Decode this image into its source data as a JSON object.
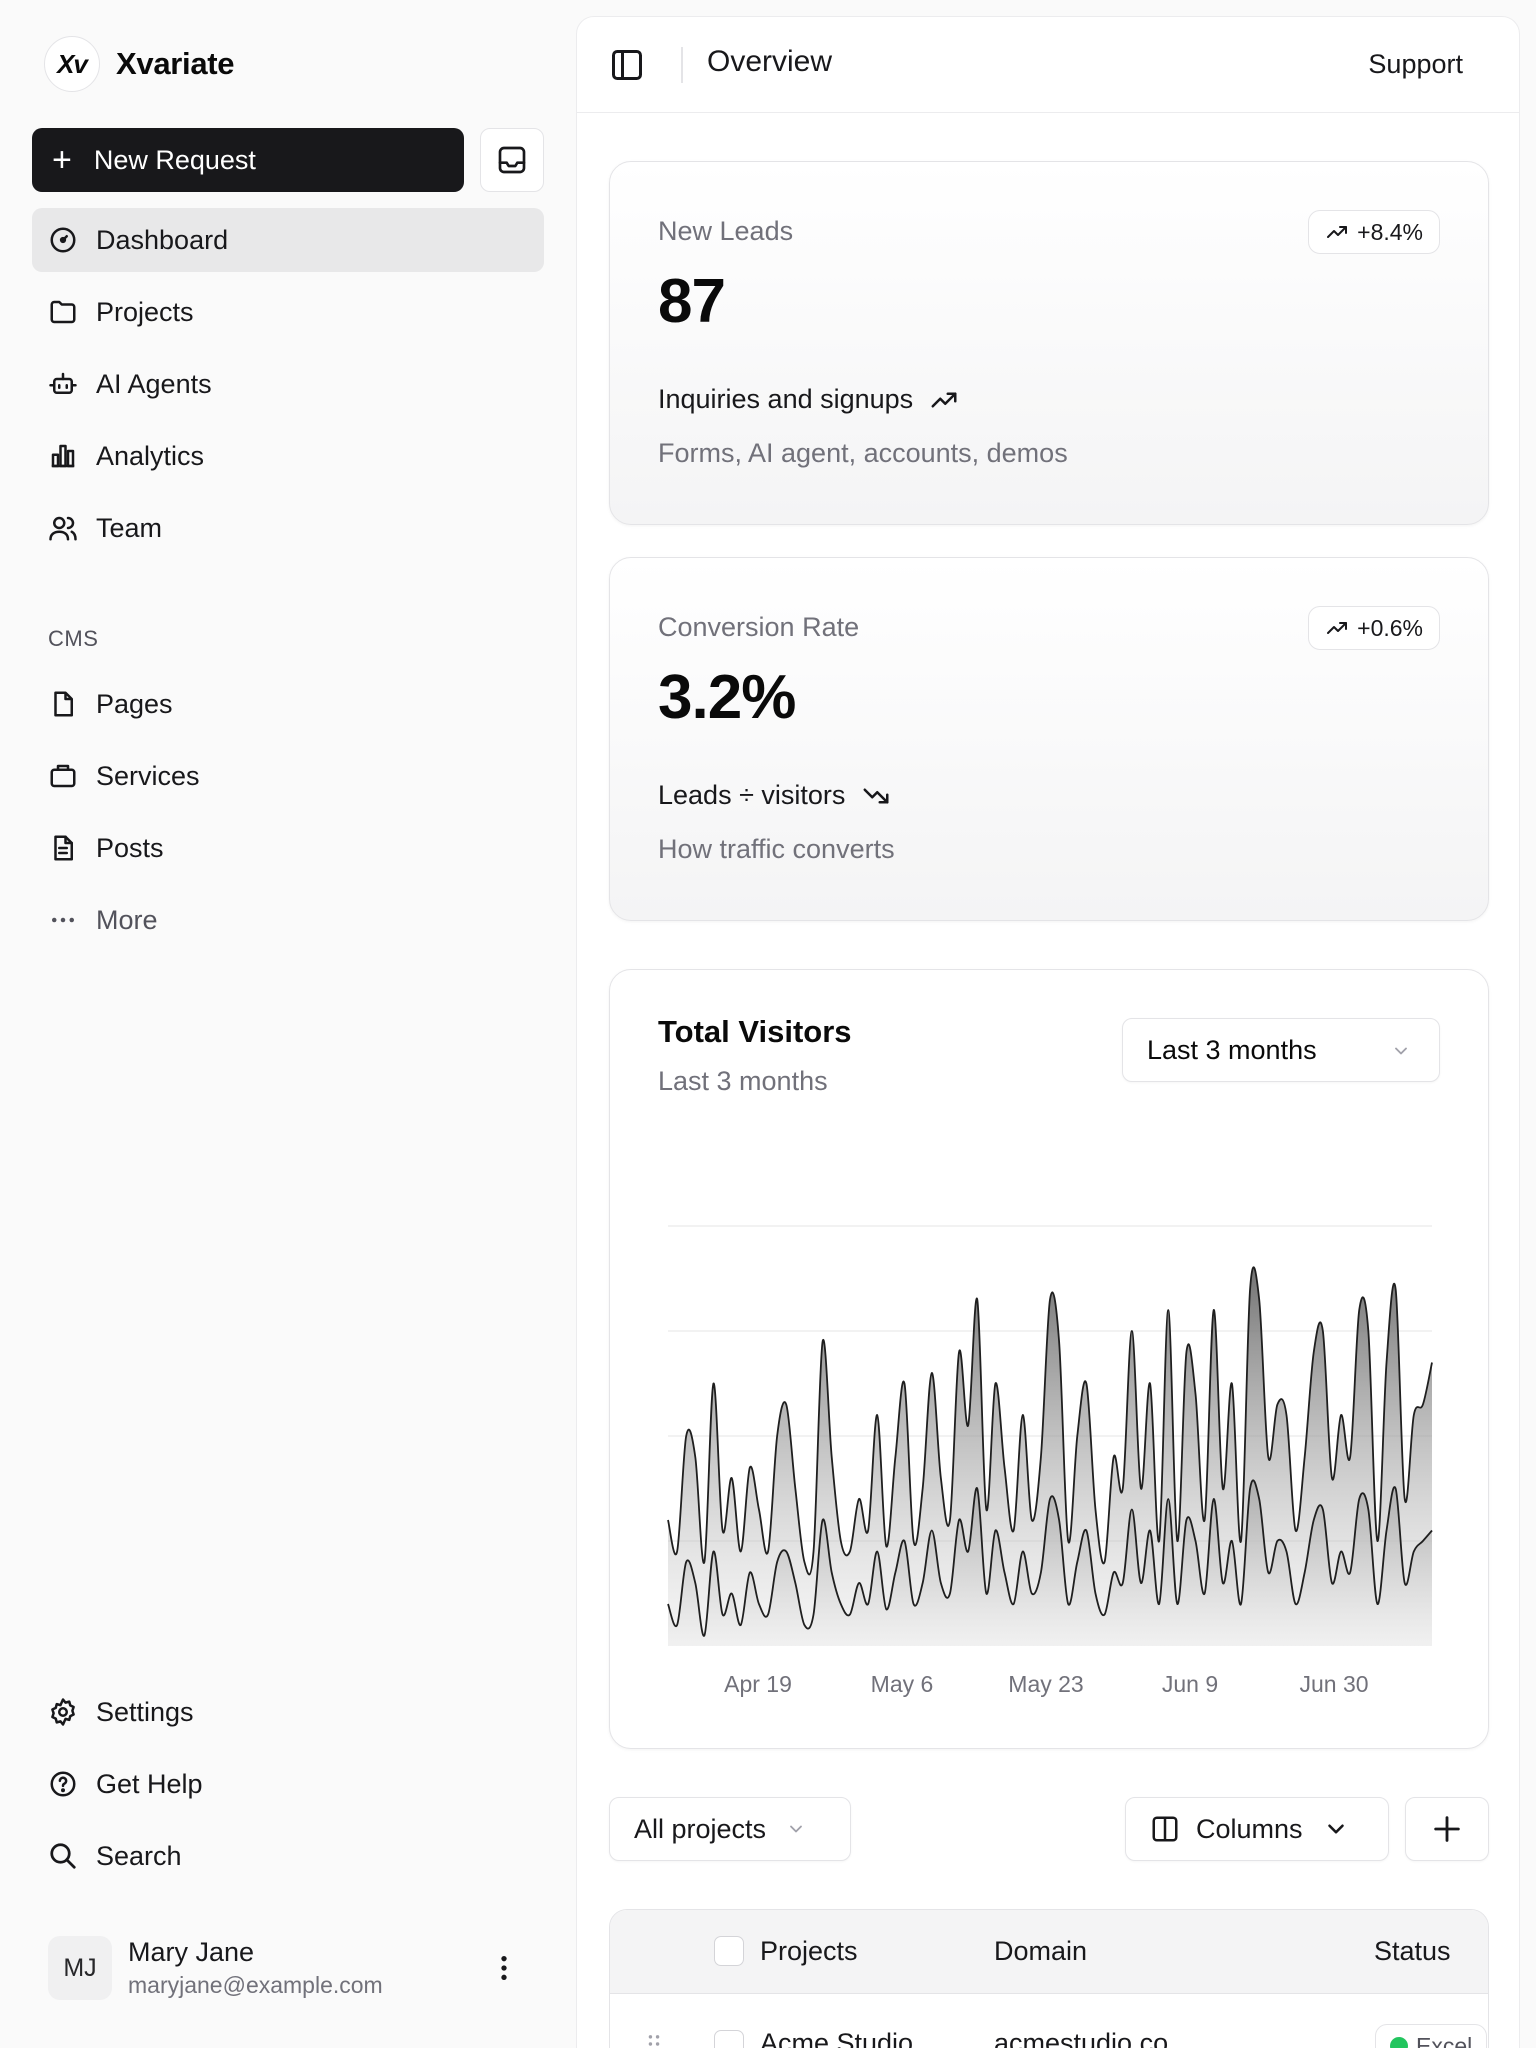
{
  "brand": {
    "logo_text": "Xv",
    "name": "Xvariate"
  },
  "actions": {
    "new_request_label": "New Request",
    "inbox_icon": "inbox-icon"
  },
  "nav": {
    "main": [
      {
        "label": "Dashboard",
        "icon": "gauge-icon",
        "active": true
      },
      {
        "label": "Projects",
        "icon": "folder-icon"
      },
      {
        "label": "AI Agents",
        "icon": "bot-icon"
      },
      {
        "label": "Analytics",
        "icon": "bar-chart-icon"
      },
      {
        "label": "Team",
        "icon": "users-icon"
      }
    ],
    "cms_label": "CMS",
    "cms": [
      {
        "label": "Pages",
        "icon": "file-icon"
      },
      {
        "label": "Services",
        "icon": "briefcase-icon"
      },
      {
        "label": "Posts",
        "icon": "file-text-icon"
      },
      {
        "label": "More",
        "icon": "ellipsis-icon"
      }
    ],
    "footer": [
      {
        "label": "Settings",
        "icon": "gear-icon"
      },
      {
        "label": "Get Help",
        "icon": "help-circle-icon"
      },
      {
        "label": "Search",
        "icon": "search-icon"
      }
    ]
  },
  "user": {
    "initials": "MJ",
    "name": "Mary Jane",
    "email": "maryjane@example.com"
  },
  "header": {
    "title": "Overview",
    "support_label": "Support"
  },
  "cards": [
    {
      "label": "New Leads",
      "value": "87",
      "badge": "+8.4%",
      "subtitle": "Inquiries and signups",
      "trend": "up",
      "description": "Forms, AI agent, accounts, demos"
    },
    {
      "label": "Conversion Rate",
      "value": "3.2%",
      "badge": "+0.6%",
      "subtitle": "Leads ÷ visitors",
      "trend": "down",
      "description": "How traffic converts"
    }
  ],
  "visitors": {
    "title": "Total Visitors",
    "subtitle": "Last 3 months",
    "range_select": "Last 3 months"
  },
  "chart_data": {
    "type": "area",
    "title": "Total Visitors",
    "subtitle": "Last 3 months",
    "x_tick_labels": [
      "Apr 19",
      "May 6",
      "May 23",
      "Jun 9",
      "Jun 30"
    ],
    "ylim": [
      0,
      400
    ],
    "grid": true,
    "series": [
      {
        "name": "",
        "values": [
          120,
          90,
          200,
          180,
          80,
          250,
          110,
          160,
          90,
          170,
          130,
          90,
          200,
          230,
          150,
          80,
          90,
          290,
          180,
          100,
          90,
          140,
          110,
          220,
          95,
          180,
          250,
          100,
          150,
          260,
          160,
          120,
          280,
          210,
          330,
          130,
          250,
          170,
          110,
          220,
          120,
          180,
          330,
          290,
          100,
          200,
          250,
          130,
          80,
          180,
          150,
          300,
          150,
          250,
          100,
          320,
          100,
          280,
          240,
          120,
          320,
          150,
          250,
          100,
          340,
          330,
          180,
          230,
          220,
          110,
          180,
          280,
          300,
          160,
          220,
          180,
          320,
          300,
          100,
          270,
          340,
          140,
          220,
          230,
          270
        ]
      },
      {
        "name": "",
        "values": [
          40,
          20,
          80,
          60,
          10,
          90,
          30,
          50,
          20,
          70,
          40,
          30,
          80,
          90,
          60,
          20,
          30,
          120,
          70,
          40,
          30,
          60,
          40,
          90,
          35,
          70,
          100,
          40,
          60,
          110,
          60,
          50,
          120,
          90,
          150,
          50,
          110,
          70,
          40,
          90,
          50,
          70,
          140,
          120,
          40,
          80,
          110,
          50,
          30,
          70,
          60,
          130,
          60,
          110,
          40,
          140,
          40,
          120,
          100,
          50,
          140,
          60,
          100,
          40,
          150,
          140,
          70,
          100,
          90,
          40,
          70,
          120,
          130,
          60,
          90,
          70,
          140,
          130,
          40,
          110,
          150,
          60,
          90,
          100,
          110
        ]
      }
    ]
  },
  "table_toolbar": {
    "filter_label": "All projects",
    "columns_label": "Columns",
    "add_icon": "plus-icon"
  },
  "table": {
    "headers": [
      "Projects",
      "Domain",
      "Status"
    ],
    "rows": [
      {
        "project": "Acme Studio",
        "domain": "acmestudio.co",
        "status": "Excel"
      }
    ]
  }
}
